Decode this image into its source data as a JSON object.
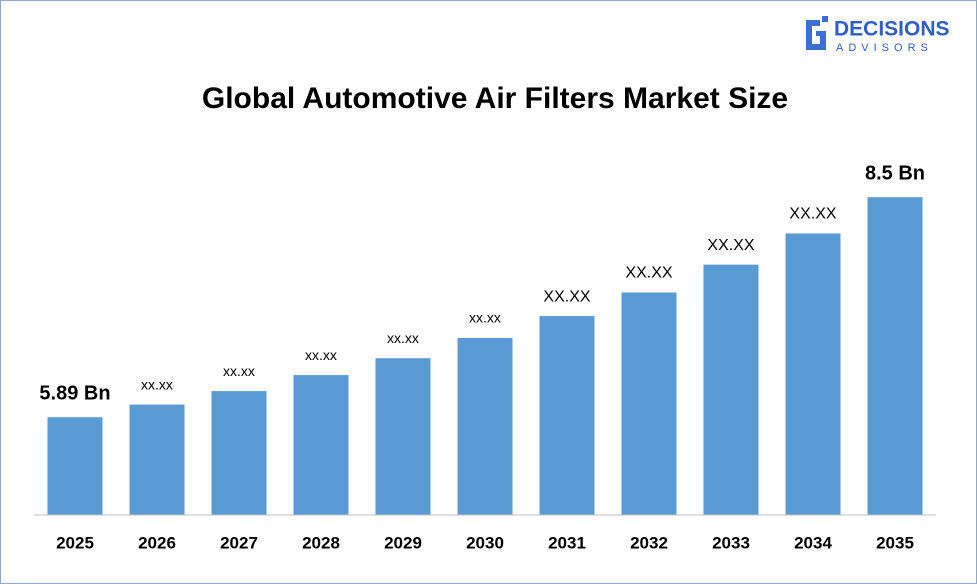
{
  "logo": {
    "name": "DECISIONS",
    "tagline": "ADVISORS"
  },
  "chart_data": {
    "type": "bar",
    "title": "Global Automotive Air Filters Market Size",
    "categories": [
      "2025",
      "2026",
      "2027",
      "2028",
      "2029",
      "2030",
      "2031",
      "2032",
      "2033",
      "2034",
      "2035"
    ],
    "values": [
      5.89,
      6.04,
      6.2,
      6.39,
      6.59,
      6.83,
      7.09,
      7.37,
      7.7,
      8.07,
      8.5
    ],
    "value_labels": [
      "5.89 Bn",
      "xx.xx",
      "xx.xx",
      "xx.xx",
      "xx.xx",
      "xx.xx",
      "XX.XX",
      "XX.XX",
      "XX.XX",
      "XX.XX",
      "8.5 Bn"
    ],
    "color": "#5b9bd5",
    "ylim": [
      4.73,
      9.06
    ]
  }
}
